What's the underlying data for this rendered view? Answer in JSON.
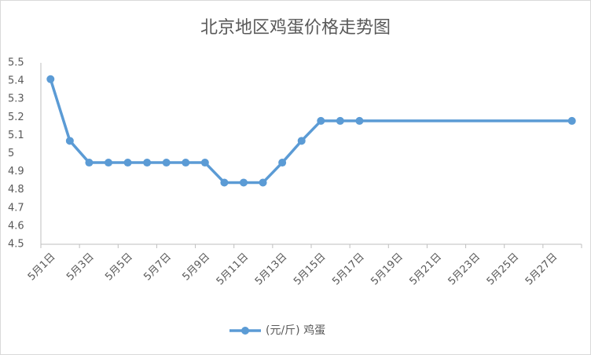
{
  "chart_data": {
    "type": "line",
    "title": "北京地区鸡蛋价格走势图",
    "categories": [
      "5月1日",
      null,
      "5月3日",
      null,
      "5月5日",
      null,
      "5月7日",
      null,
      "5月9日",
      null,
      "5月11日",
      null,
      "5月13日",
      null,
      "5月15日",
      null,
      "5月17日",
      null,
      "5月19日",
      null,
      "5月21日",
      null,
      "5月23日",
      null,
      "5月25日",
      null,
      "5月27日",
      null
    ],
    "series": [
      {
        "name": "(元/斤) 鸡蛋",
        "color": "#5b9bd5",
        "values": [
          5.41,
          5.07,
          4.95,
          4.95,
          4.95,
          4.95,
          4.95,
          4.95,
          4.95,
          4.84,
          4.84,
          4.84,
          4.95,
          5.07,
          5.18,
          5.18,
          5.18,
          null,
          null,
          null,
          null,
          null,
          null,
          null,
          null,
          null,
          null,
          5.18
        ]
      }
    ],
    "ylim": [
      4.5,
      5.5
    ],
    "yticks": [
      4.5,
      4.6,
      4.7,
      4.8,
      4.9,
      5,
      5.1,
      5.2,
      5.3,
      5.4,
      5.5
    ],
    "grid": false,
    "span_gaps": true,
    "legend": "bottom"
  }
}
